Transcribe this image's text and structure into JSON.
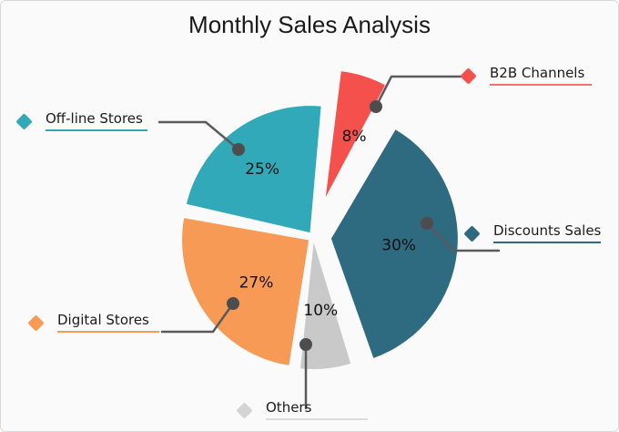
{
  "title": "Monthly Sales Analysis",
  "chart_data": {
    "type": "pie",
    "title": "Monthly Sales Analysis",
    "value_suffix": "%",
    "legend_position": "callout labels with diamond markers and leader lines around the pie",
    "slices": [
      {
        "label": "B2B Channels",
        "value": 8,
        "pct_label": "8%",
        "color": "#F5514C",
        "underline_color": "#F2726B",
        "exploded": true
      },
      {
        "label": "Discounts Sales",
        "value": 30,
        "pct_label": "30%",
        "color": "#2E6B80",
        "exploded": true
      },
      {
        "label": "Others",
        "value": 10,
        "pct_label": "10%",
        "color": "#C9C9C9",
        "marker_color": "#D4D4D4",
        "underline_color": "#DCDCDC",
        "exploded": false
      },
      {
        "label": "Digital Stores",
        "value": 27,
        "pct_label": "27%",
        "color": "#F69A55",
        "exploded": false
      },
      {
        "label": "Off-line Stores",
        "value": 25,
        "pct_label": "25%",
        "color": "#32A9B8",
        "exploded": false
      }
    ]
  },
  "style": {
    "background": "#FAFAFA",
    "title_color": "#1A1A1A",
    "pct_label_color": "#111111",
    "leader_line_color": "#5A5A5A",
    "leader_dot_color": "#4D4D4D"
  }
}
